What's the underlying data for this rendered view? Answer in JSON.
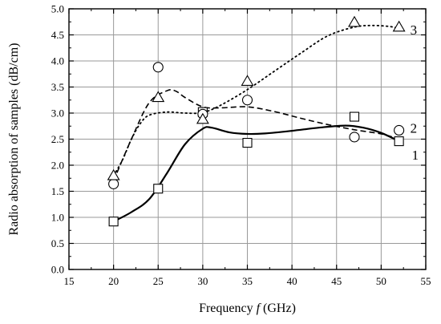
{
  "chart_data": {
    "type": "scatter",
    "xlabel": {
      "pre": "Frequency ",
      "var": "f",
      "post": " (GHz)"
    },
    "ylabel": "Radio absorption of samples (dB/cm)",
    "xlim": [
      15,
      55
    ],
    "ylim": [
      0,
      5.0
    ],
    "xticks": [
      15,
      20,
      25,
      30,
      35,
      40,
      45,
      50,
      55
    ],
    "yticks": [
      0.0,
      0.5,
      1.0,
      1.5,
      2.0,
      2.5,
      3.0,
      3.5,
      4.0,
      4.5,
      5.0
    ],
    "grid": true,
    "series": [
      {
        "name": "1",
        "marker": "square",
        "line_style": "solid",
        "points": [
          [
            20,
            0.92
          ],
          [
            25,
            1.55
          ],
          [
            30,
            3.02
          ],
          [
            35,
            2.43
          ],
          [
            47,
            2.93
          ],
          [
            52,
            2.46
          ]
        ],
        "curve": [
          [
            20,
            0.92
          ],
          [
            22,
            1.1
          ],
          [
            24,
            1.35
          ],
          [
            26,
            1.85
          ],
          [
            28,
            2.4
          ],
          [
            30,
            2.7
          ],
          [
            31,
            2.72
          ],
          [
            33,
            2.63
          ],
          [
            35,
            2.6
          ],
          [
            37,
            2.61
          ],
          [
            40,
            2.66
          ],
          [
            43,
            2.72
          ],
          [
            46,
            2.76
          ],
          [
            48,
            2.72
          ],
          [
            50,
            2.62
          ],
          [
            52,
            2.46
          ]
        ]
      },
      {
        "name": "2",
        "marker": "circle",
        "line_style": "dashed",
        "points": [
          [
            20,
            1.64
          ],
          [
            25,
            3.88
          ],
          [
            30,
            2.98
          ],
          [
            35,
            3.25
          ],
          [
            47,
            2.54
          ],
          [
            52,
            2.67
          ]
        ],
        "curve": [
          [
            20,
            1.7
          ],
          [
            22,
            2.5
          ],
          [
            24,
            3.2
          ],
          [
            26,
            3.43
          ],
          [
            27,
            3.42
          ],
          [
            28,
            3.3
          ],
          [
            30,
            3.12
          ],
          [
            32,
            3.1
          ],
          [
            35,
            3.12
          ],
          [
            38,
            3.03
          ],
          [
            41,
            2.9
          ],
          [
            44,
            2.78
          ],
          [
            47,
            2.68
          ],
          [
            50,
            2.6
          ],
          [
            52,
            2.5
          ]
        ]
      },
      {
        "name": "3",
        "marker": "triangle",
        "line_style": "dotted",
        "points": [
          [
            20,
            1.8
          ],
          [
            25,
            3.3
          ],
          [
            30,
            2.88
          ],
          [
            35,
            3.61
          ],
          [
            47,
            4.74
          ],
          [
            52,
            4.65
          ]
        ],
        "curve": [
          [
            20,
            1.8
          ],
          [
            21,
            2.1
          ],
          [
            22,
            2.5
          ],
          [
            23,
            2.8
          ],
          [
            24,
            2.96
          ],
          [
            26,
            3.02
          ],
          [
            28,
            3.0
          ],
          [
            30,
            3.01
          ],
          [
            32,
            3.15
          ],
          [
            35,
            3.45
          ],
          [
            38,
            3.8
          ],
          [
            41,
            4.15
          ],
          [
            44,
            4.48
          ],
          [
            47,
            4.65
          ],
          [
            49,
            4.68
          ],
          [
            51,
            4.66
          ],
          [
            52,
            4.62
          ]
        ]
      }
    ]
  }
}
